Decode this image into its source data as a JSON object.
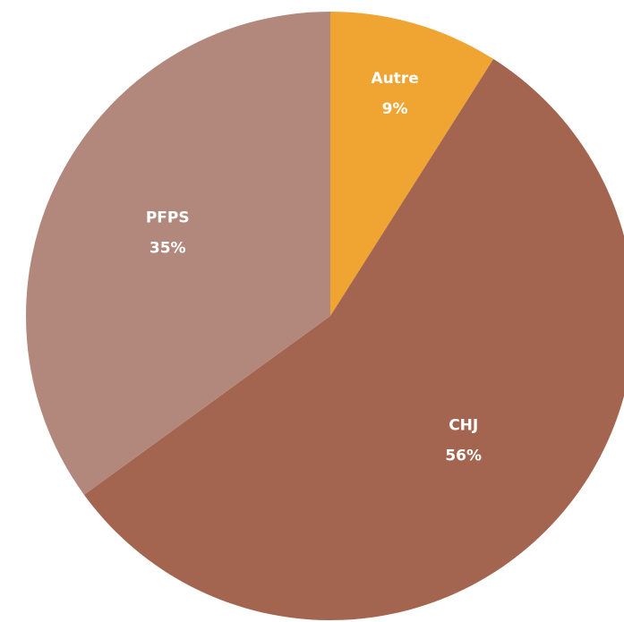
{
  "chart_data": {
    "type": "pie",
    "categories": [
      "Autre",
      "CHJ",
      "PFPS"
    ],
    "values": [
      9,
      56,
      35
    ],
    "value_labels": [
      "9%",
      "56%",
      "35%"
    ],
    "colors": [
      "#f0a431",
      "#a3654f",
      "#b3887c"
    ]
  }
}
